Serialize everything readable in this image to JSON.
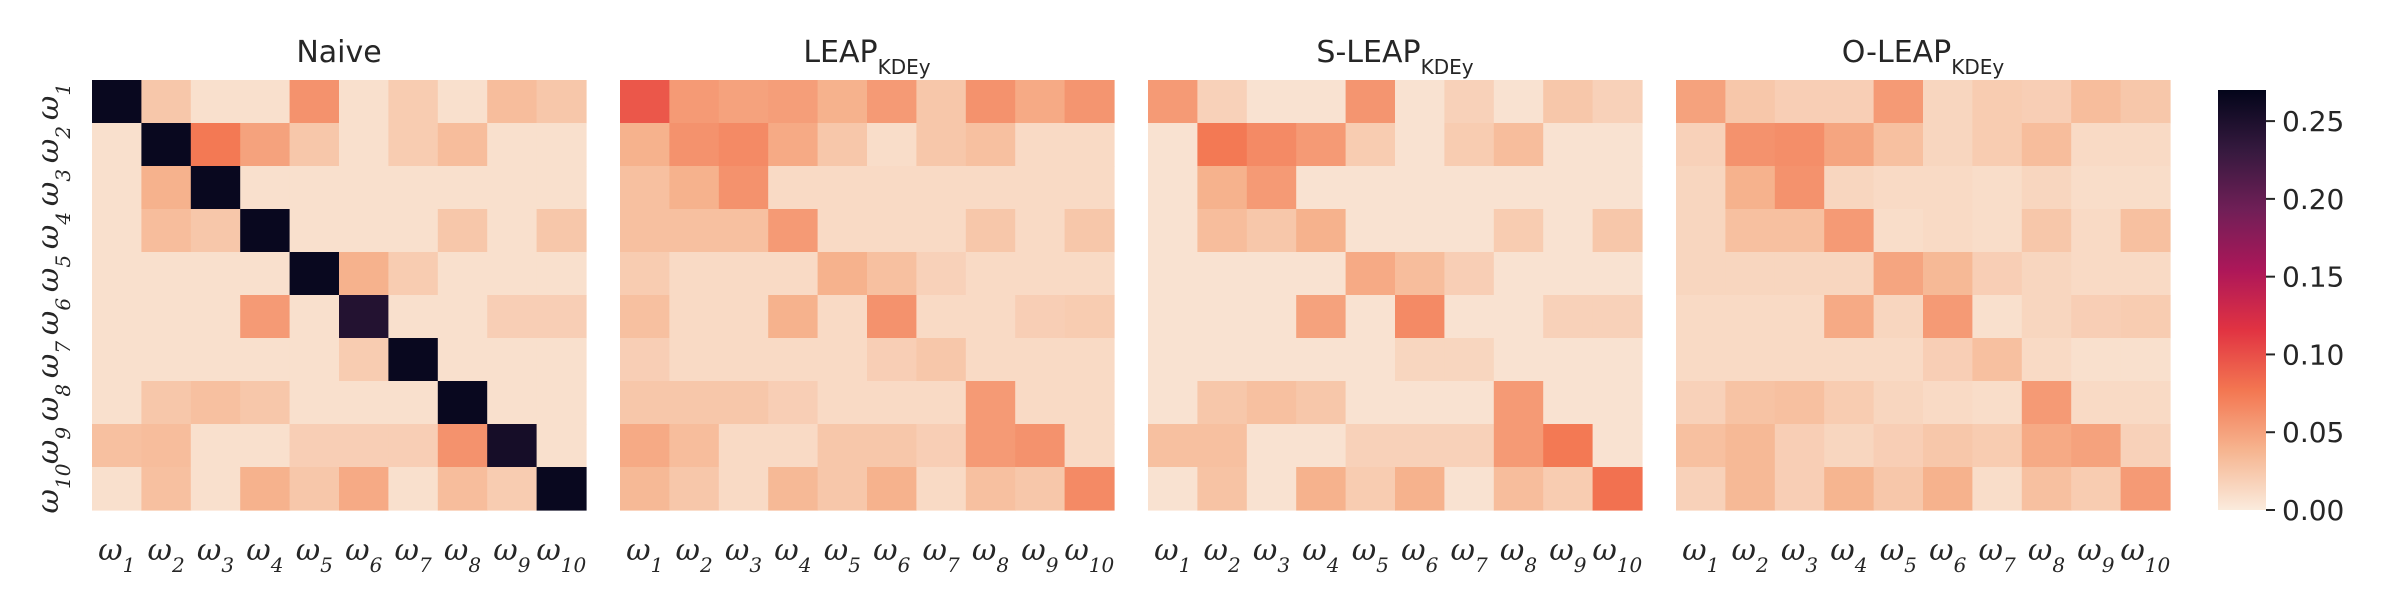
{
  "chart_data": [
    {
      "type": "heatmap",
      "title": "Naive",
      "title_main": "Naive",
      "title_sub": "",
      "x_labels": [
        "ω1",
        "ω2",
        "ω3",
        "ω4",
        "ω5",
        "ω6",
        "ω7",
        "ω8",
        "ω9",
        "ω10"
      ],
      "y_labels": [
        "ω1",
        "ω2",
        "ω3",
        "ω4",
        "ω5",
        "ω6",
        "ω7",
        "ω8",
        "ω9",
        "ω10"
      ],
      "matrix": [
        [
          0.265,
          0.025,
          0.008,
          0.008,
          0.06,
          0.008,
          0.022,
          0.008,
          0.032,
          0.025
        ],
        [
          0.008,
          0.265,
          0.075,
          0.05,
          0.025,
          0.008,
          0.022,
          0.032,
          0.008,
          0.008
        ],
        [
          0.008,
          0.04,
          0.265,
          0.008,
          0.008,
          0.008,
          0.008,
          0.008,
          0.008,
          0.008
        ],
        [
          0.008,
          0.032,
          0.025,
          0.265,
          0.008,
          0.008,
          0.008,
          0.025,
          0.008,
          0.025
        ],
        [
          0.008,
          0.008,
          0.008,
          0.008,
          0.265,
          0.04,
          0.022,
          0.008,
          0.008,
          0.008
        ],
        [
          0.008,
          0.008,
          0.008,
          0.055,
          0.008,
          0.245,
          0.008,
          0.008,
          0.02,
          0.02
        ],
        [
          0.008,
          0.008,
          0.008,
          0.008,
          0.008,
          0.022,
          0.265,
          0.008,
          0.008,
          0.008
        ],
        [
          0.008,
          0.025,
          0.03,
          0.025,
          0.008,
          0.008,
          0.008,
          0.265,
          0.008,
          0.008
        ],
        [
          0.03,
          0.032,
          0.008,
          0.008,
          0.02,
          0.02,
          0.02,
          0.06,
          0.255,
          0.008
        ],
        [
          0.008,
          0.03,
          0.008,
          0.04,
          0.025,
          0.045,
          0.008,
          0.032,
          0.022,
          0.265
        ]
      ]
    },
    {
      "type": "heatmap",
      "title": "LEAPKDEy",
      "title_main": "LEAP",
      "title_sub": "KDEy",
      "x_labels": [
        "ω1",
        "ω2",
        "ω3",
        "ω4",
        "ω5",
        "ω6",
        "ω7",
        "ω8",
        "ω9",
        "ω10"
      ],
      "y_labels": [
        "ω1",
        "ω2",
        "ω3",
        "ω4",
        "ω5",
        "ω6",
        "ω7",
        "ω8",
        "ω9",
        "ω10"
      ],
      "matrix": [
        [
          0.095,
          0.055,
          0.05,
          0.052,
          0.04,
          0.055,
          0.025,
          0.06,
          0.045,
          0.058
        ],
        [
          0.04,
          0.06,
          0.065,
          0.045,
          0.025,
          0.01,
          0.025,
          0.03,
          0.012,
          0.012
        ],
        [
          0.03,
          0.04,
          0.06,
          0.012,
          0.012,
          0.012,
          0.012,
          0.012,
          0.012,
          0.012
        ],
        [
          0.03,
          0.03,
          0.03,
          0.055,
          0.012,
          0.012,
          0.012,
          0.025,
          0.012,
          0.025
        ],
        [
          0.022,
          0.012,
          0.012,
          0.012,
          0.04,
          0.03,
          0.018,
          0.012,
          0.012,
          0.012
        ],
        [
          0.03,
          0.012,
          0.012,
          0.04,
          0.012,
          0.06,
          0.012,
          0.012,
          0.02,
          0.022
        ],
        [
          0.02,
          0.012,
          0.012,
          0.012,
          0.012,
          0.02,
          0.025,
          0.012,
          0.012,
          0.012
        ],
        [
          0.025,
          0.025,
          0.025,
          0.02,
          0.012,
          0.012,
          0.012,
          0.055,
          0.012,
          0.012
        ],
        [
          0.045,
          0.032,
          0.012,
          0.012,
          0.025,
          0.025,
          0.02,
          0.055,
          0.06,
          0.012
        ],
        [
          0.035,
          0.025,
          0.012,
          0.035,
          0.025,
          0.04,
          0.012,
          0.03,
          0.025,
          0.065
        ]
      ]
    },
    {
      "type": "heatmap",
      "title": "S-LEAPKDEy",
      "title_main": "S-LEAP",
      "title_sub": "KDEy",
      "x_labels": [
        "ω1",
        "ω2",
        "ω3",
        "ω4",
        "ω5",
        "ω6",
        "ω7",
        "ω8",
        "ω9",
        "ω10"
      ],
      "y_labels": [
        "ω1",
        "ω2",
        "ω3",
        "ω4",
        "ω5",
        "ω6",
        "ω7",
        "ω8",
        "ω9",
        "ω10"
      ],
      "matrix": [
        [
          0.055,
          0.018,
          0.006,
          0.006,
          0.058,
          0.006,
          0.018,
          0.006,
          0.025,
          0.018
        ],
        [
          0.006,
          0.075,
          0.065,
          0.055,
          0.022,
          0.006,
          0.022,
          0.032,
          0.006,
          0.006
        ],
        [
          0.006,
          0.04,
          0.055,
          0.006,
          0.006,
          0.006,
          0.006,
          0.006,
          0.006,
          0.006
        ],
        [
          0.006,
          0.032,
          0.025,
          0.04,
          0.006,
          0.006,
          0.006,
          0.022,
          0.006,
          0.025
        ],
        [
          0.006,
          0.006,
          0.006,
          0.006,
          0.045,
          0.032,
          0.02,
          0.006,
          0.006,
          0.006
        ],
        [
          0.006,
          0.006,
          0.006,
          0.05,
          0.006,
          0.065,
          0.006,
          0.006,
          0.018,
          0.018
        ],
        [
          0.006,
          0.006,
          0.006,
          0.006,
          0.006,
          0.015,
          0.015,
          0.006,
          0.006,
          0.006
        ],
        [
          0.006,
          0.025,
          0.03,
          0.025,
          0.006,
          0.006,
          0.006,
          0.055,
          0.006,
          0.006
        ],
        [
          0.03,
          0.03,
          0.006,
          0.006,
          0.018,
          0.018,
          0.018,
          0.055,
          0.075,
          0.006
        ],
        [
          0.006,
          0.028,
          0.006,
          0.04,
          0.022,
          0.04,
          0.006,
          0.032,
          0.022,
          0.08
        ]
      ]
    },
    {
      "type": "heatmap",
      "title": "O-LEAPKDEy",
      "title_main": "O-LEAP",
      "title_sub": "KDEy",
      "x_labels": [
        "ω1",
        "ω2",
        "ω3",
        "ω4",
        "ω5",
        "ω6",
        "ω7",
        "ω8",
        "ω9",
        "ω10"
      ],
      "y_labels": [
        "ω1",
        "ω2",
        "ω3",
        "ω4",
        "ω5",
        "ω6",
        "ω7",
        "ω8",
        "ω9",
        "ω10"
      ],
      "matrix": [
        [
          0.05,
          0.025,
          0.02,
          0.02,
          0.055,
          0.015,
          0.022,
          0.02,
          0.032,
          0.025
        ],
        [
          0.018,
          0.06,
          0.062,
          0.048,
          0.03,
          0.015,
          0.022,
          0.032,
          0.012,
          0.012
        ],
        [
          0.015,
          0.04,
          0.06,
          0.015,
          0.012,
          0.012,
          0.01,
          0.015,
          0.01,
          0.01
        ],
        [
          0.015,
          0.03,
          0.03,
          0.055,
          0.01,
          0.012,
          0.01,
          0.025,
          0.012,
          0.03
        ],
        [
          0.015,
          0.015,
          0.015,
          0.015,
          0.048,
          0.035,
          0.02,
          0.015,
          0.012,
          0.012
        ],
        [
          0.012,
          0.012,
          0.012,
          0.045,
          0.015,
          0.055,
          0.008,
          0.015,
          0.02,
          0.022
        ],
        [
          0.012,
          0.012,
          0.012,
          0.012,
          0.012,
          0.02,
          0.03,
          0.012,
          0.008,
          0.008
        ],
        [
          0.018,
          0.028,
          0.03,
          0.022,
          0.015,
          0.012,
          0.01,
          0.055,
          0.012,
          0.012
        ],
        [
          0.03,
          0.035,
          0.02,
          0.015,
          0.02,
          0.025,
          0.022,
          0.045,
          0.05,
          0.018
        ],
        [
          0.018,
          0.035,
          0.02,
          0.038,
          0.025,
          0.04,
          0.01,
          0.03,
          0.022,
          0.055
        ]
      ]
    }
  ],
  "colorbar": {
    "min": 0.0,
    "max": 0.27,
    "ticks": [
      "0.00",
      "0.05",
      "0.10",
      "0.15",
      "0.20",
      "0.25"
    ],
    "tick_values": [
      0.0,
      0.05,
      0.1,
      0.15,
      0.2,
      0.25
    ],
    "colormap": "rocket_r",
    "colormap_stops": [
      "#faebdd",
      "#f6b48f",
      "#f37651",
      "#e13342",
      "#ad1759",
      "#701f57",
      "#35193e",
      "#03051a"
    ]
  }
}
